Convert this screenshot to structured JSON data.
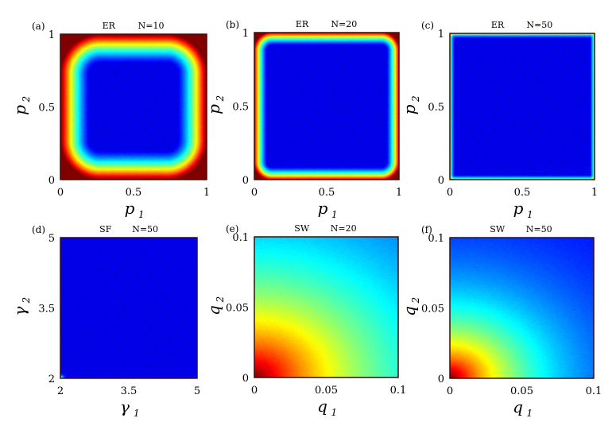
{
  "chart_data": [
    {
      "type": "heatmap",
      "label": "(a)",
      "title": "ER",
      "n_label": "N=10",
      "xlabel": "p",
      "xsub": "1",
      "ylabel": "p",
      "ysub": "2",
      "xlim": [
        0,
        1
      ],
      "ylim": [
        0,
        1
      ],
      "xticks": [
        {
          "v": 0,
          "t": "0"
        },
        {
          "v": 0.5,
          "t": "0.5"
        },
        {
          "v": 1,
          "t": "1"
        }
      ],
      "yticks": [
        {
          "v": 0,
          "t": "0"
        },
        {
          "v": 0.5,
          "t": "0.5"
        },
        {
          "v": 1,
          "t": "1"
        }
      ],
      "pattern": "edges",
      "edge_width": 0.2,
      "corner_radius": 0.27,
      "peak": 1.0
    },
    {
      "type": "heatmap",
      "label": "(b)",
      "title": "ER",
      "n_label": "N=20",
      "xlabel": "p",
      "xsub": "1",
      "ylabel": "p",
      "ysub": "2",
      "xlim": [
        0,
        1
      ],
      "ylim": [
        0,
        1
      ],
      "xticks": [
        {
          "v": 0,
          "t": "0"
        },
        {
          "v": 0.5,
          "t": "0.5"
        },
        {
          "v": 1,
          "t": "1"
        }
      ],
      "yticks": [
        {
          "v": 0,
          "t": "0"
        },
        {
          "v": 0.5,
          "t": "0.5"
        },
        {
          "v": 1,
          "t": "1"
        }
      ],
      "pattern": "edges",
      "edge_width": 0.085,
      "corner_radius": 0.12,
      "peak": 0.9
    },
    {
      "type": "heatmap",
      "label": "(c)",
      "title": "ER",
      "n_label": "N=50",
      "xlabel": "p",
      "xsub": "1",
      "ylabel": "p",
      "ysub": "2",
      "xlim": [
        0,
        1
      ],
      "ylim": [
        0,
        1
      ],
      "xticks": [
        {
          "v": 0,
          "t": "0"
        },
        {
          "v": 0.5,
          "t": "0.5"
        },
        {
          "v": 1,
          "t": "1"
        }
      ],
      "yticks": [
        {
          "v": 0,
          "t": "0"
        },
        {
          "v": 0.5,
          "t": "0.5"
        },
        {
          "v": 1,
          "t": "1"
        }
      ],
      "pattern": "corners",
      "edge_width": 0.03,
      "corner_radius": 0.03,
      "peak": 0.5
    },
    {
      "type": "heatmap",
      "label": "(d)",
      "title": "SF",
      "n_label": "N=50",
      "xlabel": "γ",
      "xsub": "1",
      "ylabel": "γ",
      "ysub": "2",
      "xlim": [
        2,
        5
      ],
      "ylim": [
        2,
        5
      ],
      "xticks": [
        {
          "v": 2,
          "t": "2"
        },
        {
          "v": 3.5,
          "t": "3.5"
        },
        {
          "v": 5,
          "t": "5"
        }
      ],
      "yticks": [
        {
          "v": 2,
          "t": "2"
        },
        {
          "v": 3.5,
          "t": "3.5"
        },
        {
          "v": 5,
          "t": "5"
        }
      ],
      "pattern": "origin",
      "decay": 0.012,
      "peak": 0.9
    },
    {
      "type": "heatmap",
      "label": "(e)",
      "title": "SW",
      "n_label": "N=20",
      "xlabel": "q",
      "xsub": "1",
      "ylabel": "q",
      "ysub": "2",
      "xlim": [
        0,
        0.1
      ],
      "ylim": [
        0,
        0.1
      ],
      "xticks": [
        {
          "v": 0,
          "t": "0"
        },
        {
          "v": 0.05,
          "t": "0.05"
        },
        {
          "v": 0.1,
          "t": "0.1"
        }
      ],
      "yticks": [
        {
          "v": 0,
          "t": "0"
        },
        {
          "v": 0.05,
          "t": "0.05"
        },
        {
          "v": 0.1,
          "t": "0.1"
        }
      ],
      "pattern": "origin",
      "decay": 0.95,
      "peak": 1.0
    },
    {
      "type": "heatmap",
      "label": "(f)",
      "title": "SW",
      "n_label": "N=50",
      "xlabel": "q",
      "xsub": "1",
      "ylabel": "q",
      "ysub": "2",
      "xlim": [
        0,
        0.1
      ],
      "ylim": [
        0,
        0.1
      ],
      "xticks": [
        {
          "v": 0,
          "t": "0"
        },
        {
          "v": 0.05,
          "t": "0.05"
        },
        {
          "v": 0.1,
          "t": "0.1"
        }
      ],
      "yticks": [
        {
          "v": 0,
          "t": "0"
        },
        {
          "v": 0.05,
          "t": "0.05"
        },
        {
          "v": 0.1,
          "t": "0.1"
        }
      ],
      "pattern": "origin",
      "decay": 0.55,
      "peak": 1.0
    }
  ]
}
